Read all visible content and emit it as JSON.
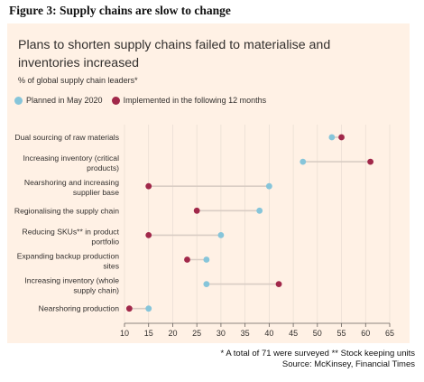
{
  "figure_label": "Figure 3: Supply chains are slow to change",
  "footnote": "* A total of 71 were surveyed ** Stock keeping units",
  "source": "Source: McKinsey, Financial Times",
  "colors": {
    "planned": "#86c5da",
    "implemented": "#a1284a",
    "panel": "#fff1e5",
    "connector": "#d9cdc4"
  },
  "chart_data": {
    "type": "scatter",
    "title": "Plans to shorten supply chains failed to materialise and inventories increased",
    "subtitle": "% of global supply chain leaders*",
    "legend_position": "top-left",
    "xlim": [
      10,
      65
    ],
    "xticks": [
      10,
      15,
      20,
      25,
      30,
      35,
      40,
      45,
      50,
      55,
      60,
      65
    ],
    "grid": "vertical",
    "categories": [
      [
        "Dual sourcing of raw materials"
      ],
      [
        "Increasing inventory (critical",
        "products)"
      ],
      [
        "Nearshoring and increasing",
        "supplier base"
      ],
      [
        "Regionalising the supply chain"
      ],
      [
        "Reducing SKUs** in product",
        "portfolio"
      ],
      [
        "Expanding backup production",
        "sites"
      ],
      [
        "Increasing inventory (whole",
        "supply chain)"
      ],
      [
        "Nearshoring production"
      ]
    ],
    "series": [
      {
        "name": "Planned in May 2020",
        "color": "#86c5da",
        "values": [
          53,
          47,
          40,
          38,
          30,
          27,
          27,
          15
        ]
      },
      {
        "name": "Implemented in the following 12 months",
        "color": "#a1284a",
        "values": [
          55,
          61,
          15,
          25,
          15,
          23,
          42,
          11
        ]
      }
    ]
  }
}
